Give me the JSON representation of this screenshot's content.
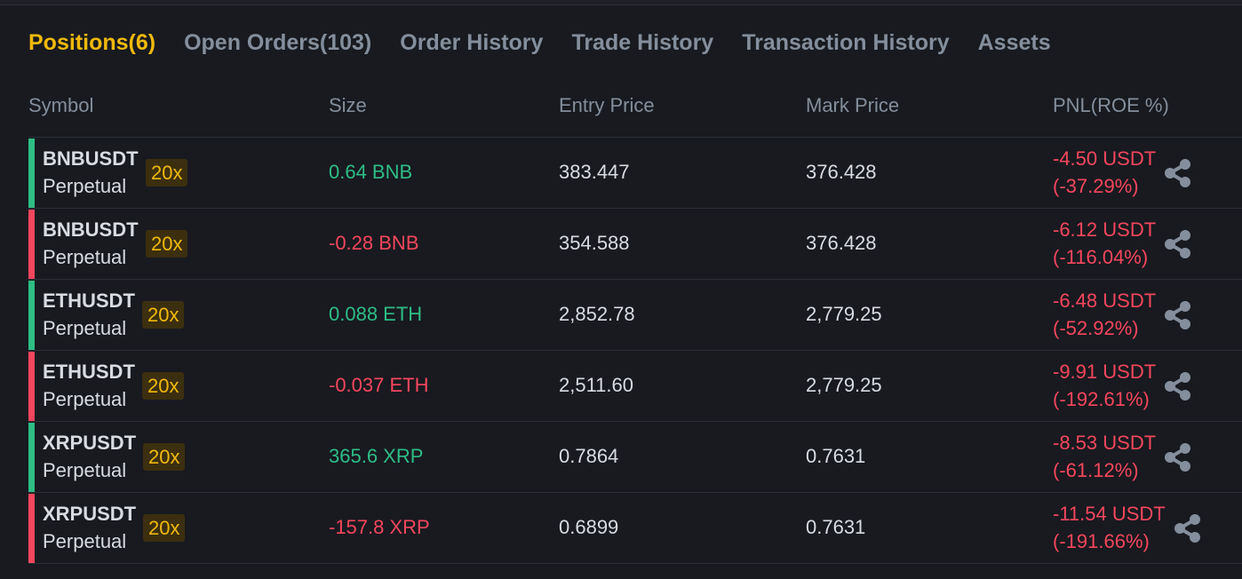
{
  "tabs": [
    {
      "label": "Positions(6)",
      "active": true
    },
    {
      "label": "Open Orders(103)",
      "active": false
    },
    {
      "label": "Order History",
      "active": false
    },
    {
      "label": "Trade History",
      "active": false
    },
    {
      "label": "Transaction History",
      "active": false
    },
    {
      "label": "Assets",
      "active": false
    }
  ],
  "headers": {
    "symbol": "Symbol",
    "size": "Size",
    "entry_price": "Entry Price",
    "mark_price": "Mark Price",
    "pnl": "PNL(ROE %)"
  },
  "colors": {
    "accent": "#f0b90b",
    "long": "#2ebd85",
    "short": "#f6465d",
    "muted": "#848e9c",
    "background": "#181a20"
  },
  "positions": [
    {
      "symbol": "BNBUSDT",
      "contract": "Perpetual",
      "leverage": "20x",
      "side": "long",
      "size": "0.64 BNB",
      "entry_price": "383.447",
      "mark_price": "376.428",
      "pnl": "-4.50 USDT",
      "roe": "(-37.29%)",
      "icon": "share-icon"
    },
    {
      "symbol": "BNBUSDT",
      "contract": "Perpetual",
      "leverage": "20x",
      "side": "short",
      "size": "-0.28 BNB",
      "entry_price": "354.588",
      "mark_price": "376.428",
      "pnl": "-6.12 USDT",
      "roe": "(-116.04%)",
      "icon": "share-icon"
    },
    {
      "symbol": "ETHUSDT",
      "contract": "Perpetual",
      "leverage": "20x",
      "side": "long",
      "size": "0.088 ETH",
      "entry_price": "2,852.78",
      "mark_price": "2,779.25",
      "pnl": "-6.48 USDT",
      "roe": "(-52.92%)",
      "icon": "share-icon"
    },
    {
      "symbol": "ETHUSDT",
      "contract": "Perpetual",
      "leverage": "20x",
      "side": "short",
      "size": "-0.037 ETH",
      "entry_price": "2,511.60",
      "mark_price": "2,779.25",
      "pnl": "-9.91 USDT",
      "roe": "(-192.61%)",
      "icon": "share-icon"
    },
    {
      "symbol": "XRPUSDT",
      "contract": "Perpetual",
      "leverage": "20x",
      "side": "long",
      "size": "365.6 XRP",
      "entry_price": "0.7864",
      "mark_price": "0.7631",
      "pnl": "-8.53 USDT",
      "roe": "(-61.12%)",
      "icon": "share-icon"
    },
    {
      "symbol": "XRPUSDT",
      "contract": "Perpetual",
      "leverage": "20x",
      "side": "short",
      "size": "-157.8 XRP",
      "entry_price": "0.6899",
      "mark_price": "0.7631",
      "pnl": "-11.54 USDT",
      "roe": "(-191.66%)",
      "icon": "share-icon"
    }
  ]
}
